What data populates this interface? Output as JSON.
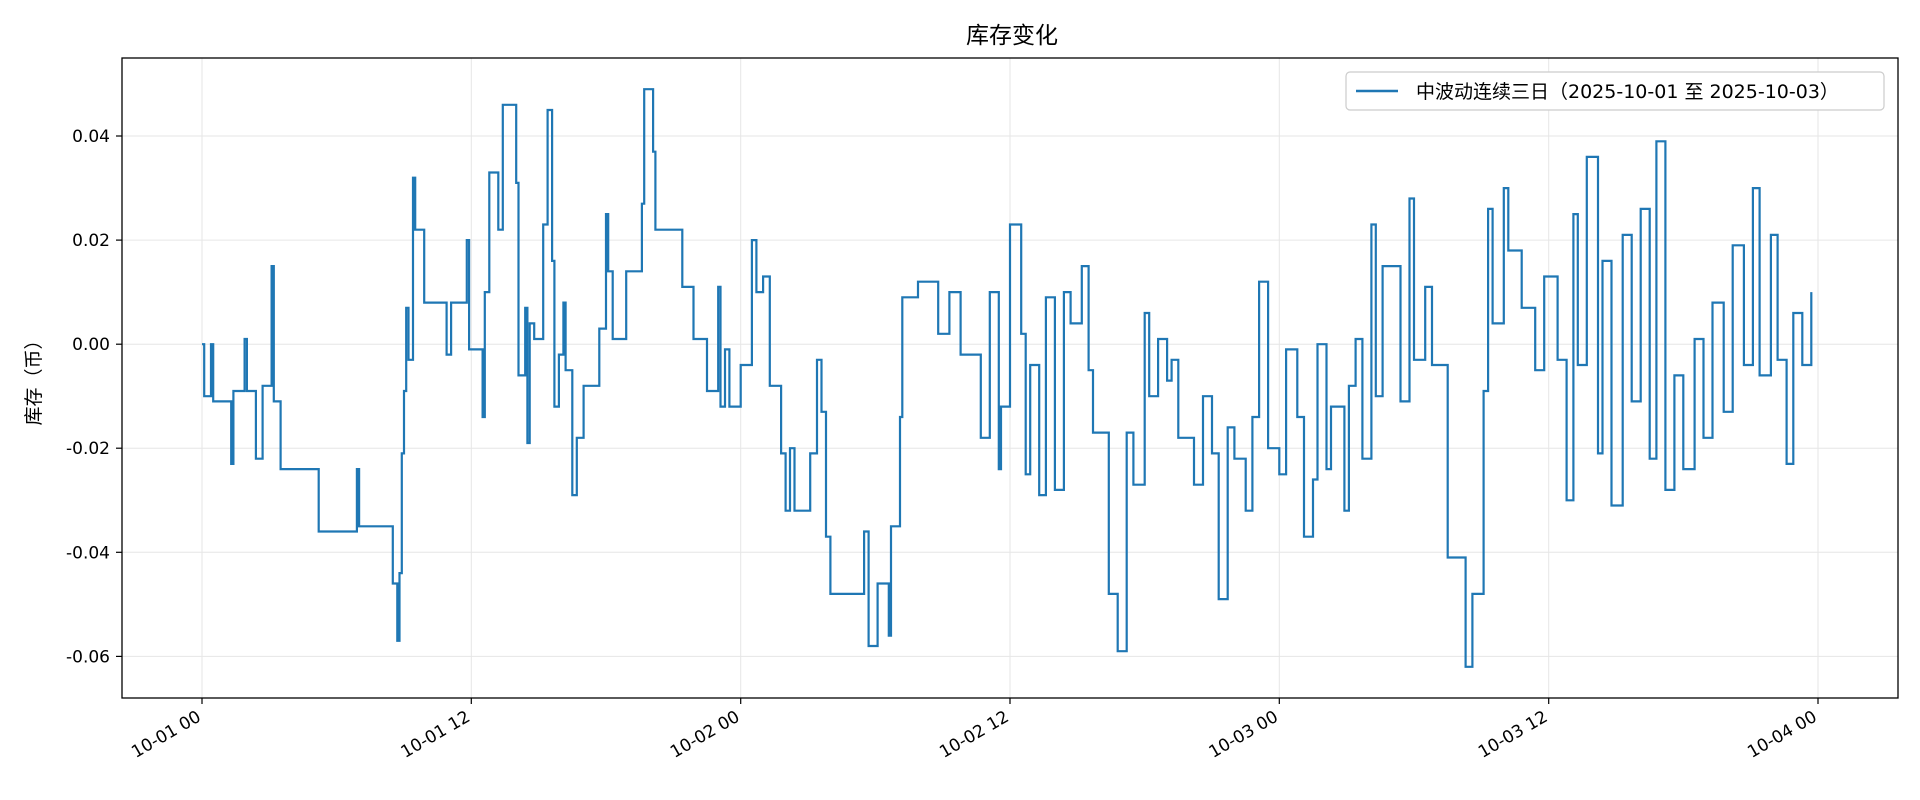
{
  "chart_data": {
    "type": "line",
    "title": "库存变化",
    "xlabel": "",
    "ylabel": "库存（币）",
    "x_range": [
      "2025-10-01 00:00",
      "2025-10-04 00:00"
    ],
    "ylim": [
      -0.068,
      0.055
    ],
    "y_ticks": [
      -0.06,
      -0.04,
      -0.02,
      0.0,
      0.02,
      0.04
    ],
    "y_tick_labels": [
      "-0.06",
      "-0.04",
      "-0.02",
      "0.00",
      "0.02",
      "0.04"
    ],
    "x_ticks": [
      "2025-10-01 00:00",
      "2025-10-01 12:00",
      "2025-10-02 00:00",
      "2025-10-02 12:00",
      "2025-10-03 00:00",
      "2025-10-03 12:00",
      "2025-10-04 00:00"
    ],
    "x_tick_labels": [
      "10-01 00",
      "10-01 12",
      "10-02 00",
      "10-02 12",
      "10-03 00",
      "10-03 12",
      "10-04 00"
    ],
    "grid": true,
    "legend_position": "top-right",
    "series": [
      {
        "name": "中波动连续三日（2025-10-01 至 2025-10-03）",
        "color": "#1f77b4",
        "step": true,
        "points": [
          [
            "2025-10-01 00:00",
            0.0
          ],
          [
            "2025-10-01 00:06",
            -0.01
          ],
          [
            "2025-10-01 00:24",
            0.0
          ],
          [
            "2025-10-01 00:30",
            -0.011
          ],
          [
            "2025-10-01 01:18",
            -0.023
          ],
          [
            "2025-10-01 01:24",
            -0.009
          ],
          [
            "2025-10-01 01:54",
            0.001
          ],
          [
            "2025-10-01 02:00",
            -0.009
          ],
          [
            "2025-10-01 02:24",
            -0.022
          ],
          [
            "2025-10-01 02:42",
            -0.008
          ],
          [
            "2025-10-01 03:06",
            0.015
          ],
          [
            "2025-10-01 03:12",
            -0.011
          ],
          [
            "2025-10-01 03:30",
            -0.024
          ],
          [
            "2025-10-01 05:12",
            -0.036
          ],
          [
            "2025-10-01 06:54",
            -0.024
          ],
          [
            "2025-10-01 07:00",
            -0.035
          ],
          [
            "2025-10-01 08:30",
            -0.046
          ],
          [
            "2025-10-01 08:42",
            -0.057
          ],
          [
            "2025-10-01 08:48",
            -0.044
          ],
          [
            "2025-10-01 08:54",
            -0.021
          ],
          [
            "2025-10-01 09:00",
            -0.009
          ],
          [
            "2025-10-01 09:06",
            0.007
          ],
          [
            "2025-10-01 09:12",
            -0.003
          ],
          [
            "2025-10-01 09:24",
            0.032
          ],
          [
            "2025-10-01 09:30",
            0.022
          ],
          [
            "2025-10-01 09:54",
            0.008
          ],
          [
            "2025-10-01 10:54",
            -0.002
          ],
          [
            "2025-10-01 11:06",
            0.008
          ],
          [
            "2025-10-01 11:48",
            0.02
          ],
          [
            "2025-10-01 11:54",
            -0.001
          ],
          [
            "2025-10-01 12:30",
            -0.014
          ],
          [
            "2025-10-01 12:36",
            0.01
          ],
          [
            "2025-10-01 12:48",
            0.033
          ],
          [
            "2025-10-01 13:12",
            0.022
          ],
          [
            "2025-10-01 13:24",
            0.046
          ],
          [
            "2025-10-01 14:00",
            0.031
          ],
          [
            "2025-10-01 14:06",
            -0.006
          ],
          [
            "2025-10-01 14:24",
            0.007
          ],
          [
            "2025-10-01 14:30",
            -0.019
          ],
          [
            "2025-10-01 14:36",
            0.004
          ],
          [
            "2025-10-01 14:48",
            0.001
          ],
          [
            "2025-10-01 15:12",
            0.023
          ],
          [
            "2025-10-01 15:24",
            0.045
          ],
          [
            "2025-10-01 15:36",
            0.016
          ],
          [
            "2025-10-01 15:42",
            -0.012
          ],
          [
            "2025-10-01 15:54",
            -0.002
          ],
          [
            "2025-10-01 16:06",
            0.008
          ],
          [
            "2025-10-01 16:12",
            -0.005
          ],
          [
            "2025-10-01 16:30",
            -0.029
          ],
          [
            "2025-10-01 16:42",
            -0.018
          ],
          [
            "2025-10-01 17:00",
            -0.008
          ],
          [
            "2025-10-01 17:42",
            0.003
          ],
          [
            "2025-10-01 18:00",
            0.025
          ],
          [
            "2025-10-01 18:06",
            0.014
          ],
          [
            "2025-10-01 18:18",
            0.001
          ],
          [
            "2025-10-01 18:54",
            0.014
          ],
          [
            "2025-10-01 19:36",
            0.027
          ],
          [
            "2025-10-01 19:42",
            0.049
          ],
          [
            "2025-10-01 20:06",
            0.037
          ],
          [
            "2025-10-01 20:12",
            0.022
          ],
          [
            "2025-10-01 21:24",
            0.011
          ],
          [
            "2025-10-01 21:54",
            0.001
          ],
          [
            "2025-10-01 22:30",
            -0.009
          ],
          [
            "2025-10-01 23:00",
            0.011
          ],
          [
            "2025-10-01 23:06",
            -0.012
          ],
          [
            "2025-10-01 23:18",
            -0.001
          ],
          [
            "2025-10-01 23:30",
            -0.012
          ],
          [
            "2025-10-02 00:00",
            -0.004
          ],
          [
            "2025-10-02 00:30",
            0.02
          ],
          [
            "2025-10-02 00:42",
            0.01
          ],
          [
            "2025-10-02 01:00",
            0.013
          ],
          [
            "2025-10-02 01:18",
            -0.008
          ],
          [
            "2025-10-02 01:48",
            -0.021
          ],
          [
            "2025-10-02 02:00",
            -0.032
          ],
          [
            "2025-10-02 02:12",
            -0.02
          ],
          [
            "2025-10-02 02:24",
            -0.032
          ],
          [
            "2025-10-02 03:06",
            -0.021
          ],
          [
            "2025-10-02 03:24",
            -0.003
          ],
          [
            "2025-10-02 03:36",
            -0.013
          ],
          [
            "2025-10-02 03:48",
            -0.037
          ],
          [
            "2025-10-02 04:00",
            -0.048
          ],
          [
            "2025-10-02 05:30",
            -0.036
          ],
          [
            "2025-10-02 05:42",
            -0.058
          ],
          [
            "2025-10-02 06:06",
            -0.046
          ],
          [
            "2025-10-02 06:36",
            -0.056
          ],
          [
            "2025-10-02 06:42",
            -0.035
          ],
          [
            "2025-10-02 07:06",
            -0.014
          ],
          [
            "2025-10-02 07:12",
            0.009
          ],
          [
            "2025-10-02 07:54",
            0.012
          ],
          [
            "2025-10-02 08:48",
            0.002
          ],
          [
            "2025-10-02 09:18",
            0.01
          ],
          [
            "2025-10-02 09:48",
            -0.002
          ],
          [
            "2025-10-02 10:42",
            -0.018
          ],
          [
            "2025-10-02 11:06",
            0.01
          ],
          [
            "2025-10-02 11:30",
            -0.024
          ],
          [
            "2025-10-02 11:36",
            -0.012
          ],
          [
            "2025-10-02 12:00",
            0.023
          ],
          [
            "2025-10-02 12:30",
            0.002
          ],
          [
            "2025-10-02 12:42",
            -0.025
          ],
          [
            "2025-10-02 12:54",
            -0.004
          ],
          [
            "2025-10-02 13:18",
            -0.029
          ],
          [
            "2025-10-02 13:36",
            0.009
          ],
          [
            "2025-10-02 14:00",
            -0.028
          ],
          [
            "2025-10-02 14:24",
            0.01
          ],
          [
            "2025-10-02 14:42",
            0.004
          ],
          [
            "2025-10-02 15:12",
            0.015
          ],
          [
            "2025-10-02 15:30",
            -0.005
          ],
          [
            "2025-10-02 15:42",
            -0.017
          ],
          [
            "2025-10-02 16:24",
            -0.048
          ],
          [
            "2025-10-02 16:48",
            -0.059
          ],
          [
            "2025-10-02 17:12",
            -0.017
          ],
          [
            "2025-10-02 17:30",
            -0.027
          ],
          [
            "2025-10-02 18:00",
            0.006
          ],
          [
            "2025-10-02 18:12",
            -0.01
          ],
          [
            "2025-10-02 18:36",
            0.001
          ],
          [
            "2025-10-02 19:00",
            -0.007
          ],
          [
            "2025-10-02 19:12",
            -0.003
          ],
          [
            "2025-10-02 19:30",
            -0.018
          ],
          [
            "2025-10-02 20:12",
            -0.027
          ],
          [
            "2025-10-02 20:36",
            -0.01
          ],
          [
            "2025-10-02 21:00",
            -0.021
          ],
          [
            "2025-10-02 21:18",
            -0.049
          ],
          [
            "2025-10-02 21:42",
            -0.016
          ],
          [
            "2025-10-02 22:00",
            -0.022
          ],
          [
            "2025-10-02 22:30",
            -0.032
          ],
          [
            "2025-10-02 22:48",
            -0.014
          ],
          [
            "2025-10-02 23:06",
            0.012
          ],
          [
            "2025-10-02 23:30",
            -0.02
          ],
          [
            "2025-10-03 00:00",
            -0.025
          ],
          [
            "2025-10-03 00:18",
            -0.001
          ],
          [
            "2025-10-03 00:48",
            -0.014
          ],
          [
            "2025-10-03 01:06",
            -0.037
          ],
          [
            "2025-10-03 01:30",
            -0.026
          ],
          [
            "2025-10-03 01:42",
            0.0
          ],
          [
            "2025-10-03 02:06",
            -0.024
          ],
          [
            "2025-10-03 02:18",
            -0.012
          ],
          [
            "2025-10-03 02:54",
            -0.032
          ],
          [
            "2025-10-03 03:06",
            -0.008
          ],
          [
            "2025-10-03 03:24",
            0.001
          ],
          [
            "2025-10-03 03:42",
            -0.022
          ],
          [
            "2025-10-03 04:06",
            0.023
          ],
          [
            "2025-10-03 04:18",
            -0.01
          ],
          [
            "2025-10-03 04:36",
            0.015
          ],
          [
            "2025-10-03 05:24",
            -0.011
          ],
          [
            "2025-10-03 05:48",
            0.028
          ],
          [
            "2025-10-03 06:00",
            -0.003
          ],
          [
            "2025-10-03 06:30",
            0.011
          ],
          [
            "2025-10-03 06:48",
            -0.004
          ],
          [
            "2025-10-03 07:30",
            -0.041
          ],
          [
            "2025-10-03 08:18",
            -0.062
          ],
          [
            "2025-10-03 08:36",
            -0.048
          ],
          [
            "2025-10-03 09:06",
            -0.009
          ],
          [
            "2025-10-03 09:18",
            0.026
          ],
          [
            "2025-10-03 09:30",
            0.004
          ],
          [
            "2025-10-03 10:00",
            0.03
          ],
          [
            "2025-10-03 10:12",
            0.018
          ],
          [
            "2025-10-03 10:48",
            0.007
          ],
          [
            "2025-10-03 11:24",
            -0.005
          ],
          [
            "2025-10-03 11:48",
            0.013
          ],
          [
            "2025-10-03 12:24",
            -0.003
          ],
          [
            "2025-10-03 12:48",
            -0.03
          ],
          [
            "2025-10-03 13:06",
            0.025
          ],
          [
            "2025-10-03 13:18",
            -0.004
          ],
          [
            "2025-10-03 13:42",
            0.036
          ],
          [
            "2025-10-03 14:12",
            -0.021
          ],
          [
            "2025-10-03 14:24",
            0.016
          ],
          [
            "2025-10-03 14:48",
            -0.031
          ],
          [
            "2025-10-03 15:18",
            0.021
          ],
          [
            "2025-10-03 15:42",
            -0.011
          ],
          [
            "2025-10-03 16:06",
            0.026
          ],
          [
            "2025-10-03 16:30",
            -0.022
          ],
          [
            "2025-10-03 16:48",
            0.039
          ],
          [
            "2025-10-03 17:12",
            -0.028
          ],
          [
            "2025-10-03 17:36",
            -0.006
          ],
          [
            "2025-10-03 18:00",
            -0.024
          ],
          [
            "2025-10-03 18:30",
            0.001
          ],
          [
            "2025-10-03 18:54",
            -0.018
          ],
          [
            "2025-10-03 19:18",
            0.008
          ],
          [
            "2025-10-03 19:48",
            -0.013
          ],
          [
            "2025-10-03 20:12",
            0.019
          ],
          [
            "2025-10-03 20:42",
            -0.004
          ],
          [
            "2025-10-03 21:06",
            0.03
          ],
          [
            "2025-10-03 21:24",
            -0.006
          ],
          [
            "2025-10-03 21:54",
            0.021
          ],
          [
            "2025-10-03 22:12",
            -0.003
          ],
          [
            "2025-10-03 22:36",
            -0.023
          ],
          [
            "2025-10-03 22:54",
            0.006
          ],
          [
            "2025-10-03 23:18",
            -0.004
          ],
          [
            "2025-10-03 23:42",
            0.01
          ]
        ]
      }
    ]
  }
}
